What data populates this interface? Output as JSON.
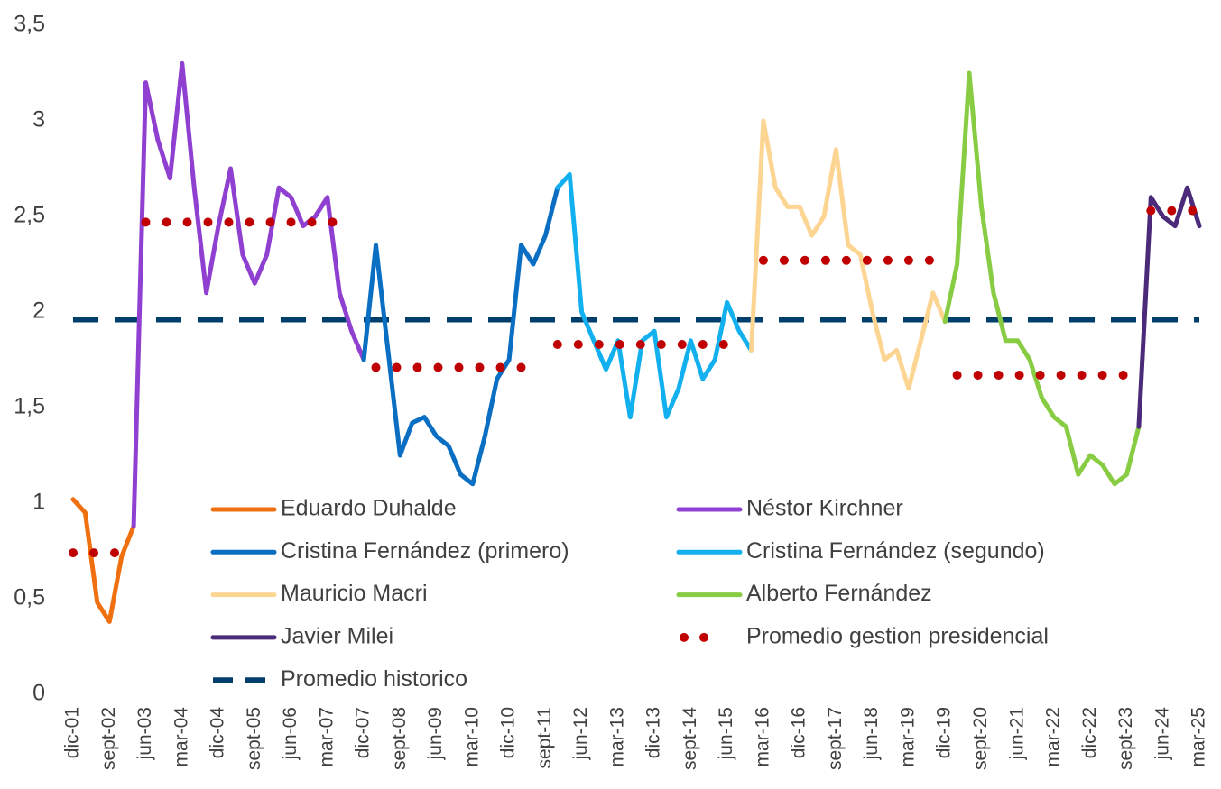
{
  "chart_data": {
    "type": "line",
    "categories": [
      "dic-01",
      null,
      null,
      "sept-02",
      null,
      null,
      "jun-03",
      null,
      null,
      "mar-04",
      null,
      null,
      "dic-04",
      null,
      null,
      "sept-05",
      null,
      null,
      "jun-06",
      null,
      null,
      "mar-07",
      null,
      null,
      "dic-07",
      null,
      null,
      "sept-08",
      null,
      null,
      "jun-09",
      null,
      null,
      "mar-10",
      null,
      null,
      "dic-10",
      null,
      null,
      "sept-11",
      null,
      null,
      "jun-12",
      null,
      null,
      "mar-13",
      null,
      null,
      "dic-13",
      null,
      null,
      "sept-14",
      null,
      null,
      "jun-15",
      null,
      null,
      "mar-16",
      null,
      null,
      "dic-16",
      null,
      null,
      "sept-17",
      null,
      null,
      "jun-18",
      null,
      null,
      "mar-19",
      null,
      null,
      "dic-19",
      null,
      null,
      "sept-20",
      null,
      null,
      "jun-21",
      null,
      null,
      "mar-22",
      null,
      null,
      "dic-22",
      null,
      null,
      "sept-23",
      null,
      null,
      "jun-24",
      null,
      null,
      "mar-25"
    ],
    "ylim": [
      0,
      3.5
    ],
    "yticks": [
      0,
      {
        "value": 0.5,
        "label": "0,5"
      },
      1,
      {
        "value": 1.5,
        "label": "1,5"
      },
      2,
      {
        "value": 2.5,
        "label": "2,5"
      },
      3,
      {
        "value": 3.5,
        "label": "3,5"
      }
    ],
    "grid": false,
    "series": [
      {
        "name": "Eduardo Duhalde",
        "color": "#f07010",
        "style": "solid",
        "values": [
          1.02,
          0.95,
          0.48,
          0.38,
          0.72,
          0.88,
          null,
          null,
          null,
          null,
          null,
          null,
          null,
          null,
          null,
          null,
          null,
          null,
          null,
          null,
          null,
          null,
          null,
          null,
          null,
          null,
          null,
          null,
          null,
          null,
          null,
          null,
          null,
          null,
          null,
          null,
          null,
          null,
          null,
          null,
          null,
          null,
          null,
          null,
          null,
          null,
          null,
          null,
          null,
          null,
          null,
          null,
          null,
          null,
          null,
          null,
          null,
          null,
          null,
          null,
          null,
          null,
          null,
          null,
          null,
          null,
          null,
          null,
          null,
          null,
          null,
          null,
          null,
          null,
          null,
          null,
          null,
          null,
          null,
          null,
          null,
          null,
          null,
          null,
          null,
          null,
          null,
          null,
          null,
          null,
          null,
          null,
          null,
          null
        ]
      },
      {
        "name": "Néstor Kirchner",
        "color": "#9040d0",
        "style": "solid",
        "values": [
          null,
          null,
          null,
          null,
          null,
          0.88,
          3.2,
          2.9,
          2.7,
          3.3,
          2.65,
          2.1,
          2.45,
          2.75,
          2.3,
          2.15,
          2.3,
          2.65,
          2.6,
          2.45,
          2.5,
          2.6,
          2.1,
          1.9,
          1.75,
          null,
          null,
          null,
          null,
          null,
          null,
          null,
          null,
          null,
          null,
          null,
          null,
          null,
          null,
          null,
          null,
          null,
          null,
          null,
          null,
          null,
          null,
          null,
          null,
          null,
          null,
          null,
          null,
          null,
          null,
          null,
          null,
          null,
          null,
          null,
          null,
          null,
          null,
          null,
          null,
          null,
          null,
          null,
          null,
          null,
          null,
          null,
          null,
          null,
          null,
          null,
          null,
          null,
          null,
          null,
          null,
          null,
          null,
          null,
          null,
          null,
          null,
          null,
          null,
          null,
          null,
          null,
          null,
          null
        ]
      },
      {
        "name": "Cristina Fernández (primero)",
        "color": "#0a6fc2",
        "style": "solid",
        "values": [
          null,
          null,
          null,
          null,
          null,
          null,
          null,
          null,
          null,
          null,
          null,
          null,
          null,
          null,
          null,
          null,
          null,
          null,
          null,
          null,
          null,
          null,
          null,
          null,
          1.75,
          2.35,
          1.8,
          1.25,
          1.42,
          1.45,
          1.35,
          1.3,
          1.15,
          1.1,
          1.35,
          1.65,
          1.75,
          2.35,
          2.25,
          2.4,
          2.65,
          null,
          null,
          null,
          null,
          null,
          null,
          null,
          null,
          null,
          null,
          null,
          null,
          null,
          null,
          null,
          null,
          null,
          null,
          null,
          null,
          null,
          null,
          null,
          null,
          null,
          null,
          null,
          null,
          null,
          null,
          null,
          null,
          null,
          null,
          null,
          null,
          null,
          null,
          null,
          null,
          null,
          null,
          null,
          null,
          null,
          null,
          null,
          null,
          null,
          null,
          null,
          null,
          null
        ]
      },
      {
        "name": "Cristina Fernández (segundo)",
        "color": "#12b0ee",
        "style": "solid",
        "values": [
          null,
          null,
          null,
          null,
          null,
          null,
          null,
          null,
          null,
          null,
          null,
          null,
          null,
          null,
          null,
          null,
          null,
          null,
          null,
          null,
          null,
          null,
          null,
          null,
          null,
          null,
          null,
          null,
          null,
          null,
          null,
          null,
          null,
          null,
          null,
          null,
          null,
          null,
          null,
          null,
          2.65,
          2.72,
          2.0,
          1.85,
          1.7,
          1.85,
          1.45,
          1.85,
          1.9,
          1.45,
          1.6,
          1.85,
          1.65,
          1.75,
          2.05,
          1.9,
          1.8,
          null,
          null,
          null,
          null,
          null,
          null,
          null,
          null,
          null,
          null,
          null,
          null,
          null,
          null,
          null,
          null,
          null,
          null,
          null,
          null,
          null,
          null,
          null,
          null,
          null,
          null,
          null,
          null,
          null,
          null,
          null,
          null,
          null,
          null,
          null,
          null,
          null
        ]
      },
      {
        "name": "Mauricio Macri",
        "color": "#fdd592",
        "style": "solid",
        "values": [
          null,
          null,
          null,
          null,
          null,
          null,
          null,
          null,
          null,
          null,
          null,
          null,
          null,
          null,
          null,
          null,
          null,
          null,
          null,
          null,
          null,
          null,
          null,
          null,
          null,
          null,
          null,
          null,
          null,
          null,
          null,
          null,
          null,
          null,
          null,
          null,
          null,
          null,
          null,
          null,
          null,
          null,
          null,
          null,
          null,
          null,
          null,
          null,
          null,
          null,
          null,
          null,
          null,
          null,
          null,
          null,
          1.8,
          3.0,
          2.65,
          2.55,
          2.55,
          2.4,
          2.5,
          2.85,
          2.35,
          2.3,
          2.0,
          1.75,
          1.8,
          1.6,
          1.85,
          2.1,
          1.95,
          null,
          null,
          null,
          null,
          null,
          null,
          null,
          null,
          null,
          null,
          null,
          null,
          null,
          null,
          null,
          null,
          null,
          null,
          null,
          null,
          null
        ]
      },
      {
        "name": "Alberto Fernández",
        "color": "#88cc44",
        "style": "solid",
        "values": [
          null,
          null,
          null,
          null,
          null,
          null,
          null,
          null,
          null,
          null,
          null,
          null,
          null,
          null,
          null,
          null,
          null,
          null,
          null,
          null,
          null,
          null,
          null,
          null,
          null,
          null,
          null,
          null,
          null,
          null,
          null,
          null,
          null,
          null,
          null,
          null,
          null,
          null,
          null,
          null,
          null,
          null,
          null,
          null,
          null,
          null,
          null,
          null,
          null,
          null,
          null,
          null,
          null,
          null,
          null,
          null,
          null,
          null,
          null,
          null,
          null,
          null,
          null,
          null,
          null,
          null,
          null,
          null,
          null,
          null,
          null,
          null,
          1.95,
          2.25,
          3.25,
          2.55,
          2.1,
          1.85,
          1.85,
          1.75,
          1.55,
          1.45,
          1.4,
          1.15,
          1.25,
          1.2,
          1.1,
          1.15,
          1.4,
          null,
          null,
          null,
          null,
          null
        ]
      },
      {
        "name": "Javier Milei",
        "color": "#4b2a7a",
        "style": "solid",
        "values": [
          null,
          null,
          null,
          null,
          null,
          null,
          null,
          null,
          null,
          null,
          null,
          null,
          null,
          null,
          null,
          null,
          null,
          null,
          null,
          null,
          null,
          null,
          null,
          null,
          null,
          null,
          null,
          null,
          null,
          null,
          null,
          null,
          null,
          null,
          null,
          null,
          null,
          null,
          null,
          null,
          null,
          null,
          null,
          null,
          null,
          null,
          null,
          null,
          null,
          null,
          null,
          null,
          null,
          null,
          null,
          null,
          null,
          null,
          null,
          null,
          null,
          null,
          null,
          null,
          null,
          null,
          null,
          null,
          null,
          null,
          null,
          null,
          null,
          null,
          null,
          null,
          null,
          null,
          null,
          null,
          null,
          null,
          null,
          null,
          null,
          null,
          null,
          null,
          1.4,
          2.6,
          2.5,
          2.45,
          2.65,
          2.45
        ]
      },
      {
        "name": "Promedio gestion presidencial",
        "color": "#c00000",
        "style": "dotted",
        "values": [
          0.74,
          0.74,
          0.74,
          0.74,
          0.74,
          null,
          2.47,
          2.47,
          2.47,
          2.47,
          2.47,
          2.47,
          2.47,
          2.47,
          2.47,
          2.47,
          2.47,
          2.47,
          2.47,
          2.47,
          2.47,
          2.47,
          2.47,
          2.47,
          null,
          1.71,
          1.71,
          1.71,
          1.71,
          1.71,
          1.71,
          1.71,
          1.71,
          1.71,
          1.71,
          1.71,
          1.71,
          1.71,
          1.71,
          null,
          1.83,
          1.83,
          1.83,
          1.83,
          1.83,
          1.83,
          1.83,
          1.83,
          1.83,
          1.83,
          1.83,
          1.83,
          1.83,
          1.83,
          1.83,
          1.83,
          null,
          2.27,
          2.27,
          2.27,
          2.27,
          2.27,
          2.27,
          2.27,
          2.27,
          2.27,
          2.27,
          2.27,
          2.27,
          2.27,
          2.27,
          2.27,
          null,
          1.67,
          1.67,
          1.67,
          1.67,
          1.67,
          1.67,
          1.67,
          1.67,
          1.67,
          1.67,
          1.67,
          1.67,
          1.67,
          1.67,
          1.67,
          null,
          2.53,
          2.53,
          2.53,
          2.53,
          2.53
        ]
      }
    ],
    "reference_line": {
      "name": "Promedio historico",
      "color": "#003f6b",
      "style": "dashed",
      "value": 1.96
    }
  }
}
